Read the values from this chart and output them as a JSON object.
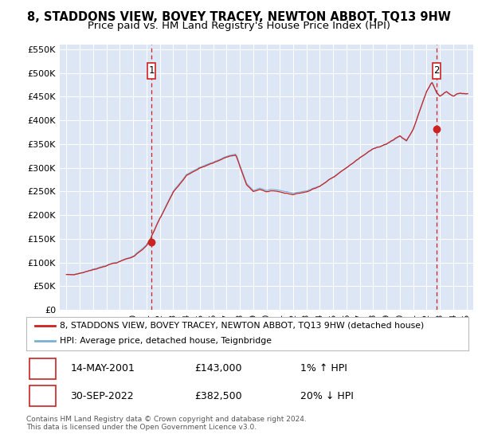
{
  "title": "8, STADDONS VIEW, BOVEY TRACEY, NEWTON ABBOT, TQ13 9HW",
  "subtitle": "Price paid vs. HM Land Registry's House Price Index (HPI)",
  "title_fontsize": 10.5,
  "subtitle_fontsize": 9.5,
  "background_color": "#ffffff",
  "plot_bg_color": "#dce6f5",
  "grid_color": "#ffffff",
  "hpi_line_color": "#7bafd4",
  "price_line_color": "#cc2222",
  "sale_marker_color": "#cc2222",
  "legend_label_price": "8, STADDONS VIEW, BOVEY TRACEY, NEWTON ABBOT, TQ13 9HW (detached house)",
  "legend_label_hpi": "HPI: Average price, detached house, Teignbridge",
  "annotation1_date": "14-MAY-2001",
  "annotation1_price": "£143,000",
  "annotation1_hpi": "1% ↑ HPI",
  "annotation2_date": "30-SEP-2022",
  "annotation2_price": "£382,500",
  "annotation2_hpi": "20% ↓ HPI",
  "footer": "Contains HM Land Registry data © Crown copyright and database right 2024.\nThis data is licensed under the Open Government Licence v3.0.",
  "sale1_t": 2001.37,
  "sale1_price": 143000,
  "sale2_t": 2022.75,
  "sale2_price": 382500,
  "yticks": [
    0,
    50000,
    100000,
    150000,
    200000,
    250000,
    300000,
    350000,
    400000,
    450000,
    500000,
    550000
  ],
  "ylim": [
    0,
    560000
  ],
  "xlim": [
    1994.5,
    2025.5
  ]
}
